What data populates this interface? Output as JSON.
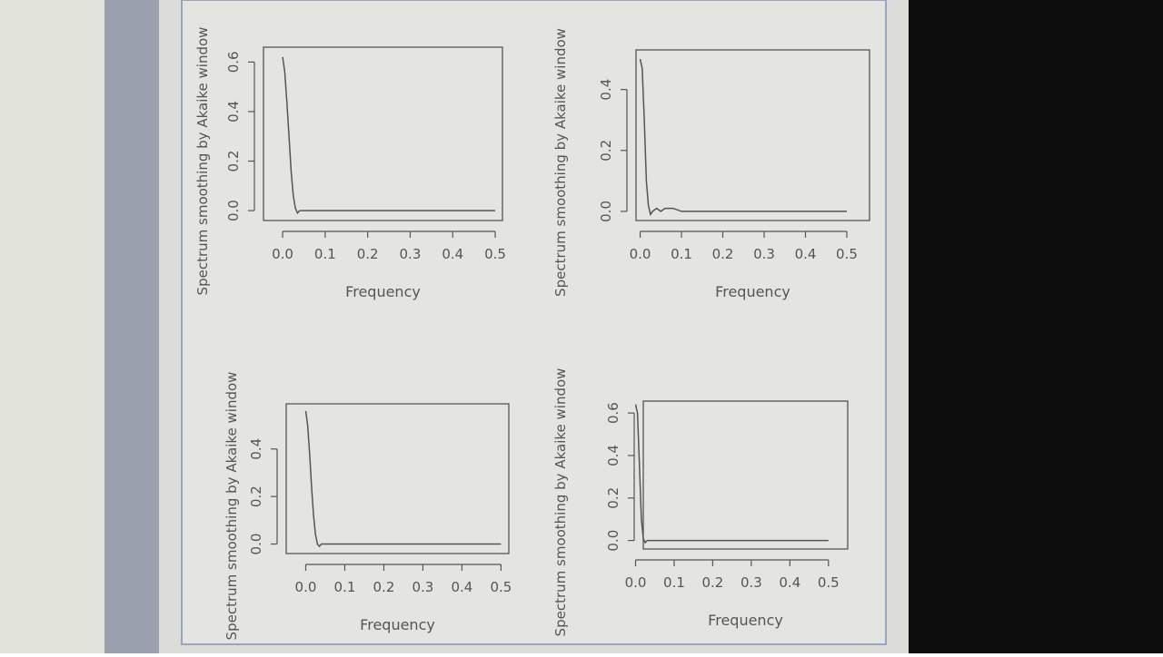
{
  "chart_data": [
    {
      "type": "line",
      "ylabel": "Spectrum smoothing by  Akaike  window",
      "xlabel": "Frequency",
      "x": [
        0,
        0.005,
        0.01,
        0.015,
        0.02,
        0.025,
        0.03,
        0.035,
        0.04,
        0.05,
        0.1,
        0.2,
        0.3,
        0.4,
        0.5
      ],
      "values": [
        0.62,
        0.56,
        0.44,
        0.3,
        0.16,
        0.06,
        0.01,
        -0.01,
        0.0,
        0.0,
        0.0,
        0.0,
        0.0,
        0.0,
        0.0
      ],
      "color": "#555555",
      "xlim": [
        -0.045,
        0.517
      ],
      "ylim": [
        -0.04,
        0.66
      ],
      "xticks": [
        {
          "value": 0,
          "label": "0.0"
        },
        0.1,
        0.2,
        0.3,
        0.4,
        0.5
      ],
      "yticks": [
        {
          "value": 0,
          "label": "0.0"
        },
        0.2,
        0.4,
        0.6
      ]
    },
    {
      "type": "line",
      "ylabel": "Spectrum smoothing by  Akaike  window",
      "xlabel": "Frequency",
      "x": [
        0,
        0.005,
        0.01,
        0.015,
        0.02,
        0.025,
        0.03,
        0.04,
        0.05,
        0.06,
        0.08,
        0.1,
        0.2,
        0.3,
        0.4,
        0.5
      ],
      "values": [
        0.5,
        0.47,
        0.3,
        0.1,
        0.02,
        -0.01,
        0.0,
        0.01,
        0.0,
        0.01,
        0.01,
        0.0,
        0.0,
        0.0,
        0.0,
        0.0
      ],
      "color": "#555555",
      "xlim": [
        -0.01,
        0.555
      ],
      "ylim": [
        -0.03,
        0.53
      ],
      "xticks": [
        {
          "value": 0,
          "label": "0.0"
        },
        0.1,
        0.2,
        0.3,
        0.4,
        0.5
      ],
      "yticks": [
        {
          "value": 0,
          "label": "0.0"
        },
        0.2,
        0.4
      ]
    },
    {
      "type": "line",
      "ylabel": "Spectrum smoothing by  Akaike  window",
      "xlabel": "Frequency",
      "x": [
        0,
        0.005,
        0.01,
        0.015,
        0.02,
        0.025,
        0.03,
        0.035,
        0.04,
        0.05,
        0.1,
        0.2,
        0.3,
        0.4,
        0.5
      ],
      "values": [
        0.56,
        0.5,
        0.38,
        0.24,
        0.12,
        0.04,
        0.0,
        -0.01,
        0.0,
        0.0,
        0.0,
        0.0,
        0.0,
        0.0,
        0.0
      ],
      "color": "#555555",
      "xlim": [
        -0.05,
        0.52
      ],
      "ylim": [
        -0.04,
        0.59
      ],
      "xticks": [
        {
          "value": 0,
          "label": "0.0"
        },
        0.1,
        0.2,
        0.3,
        0.4,
        0.5
      ],
      "yticks": [
        {
          "value": 0,
          "label": "0.0"
        },
        0.2,
        0.4
      ]
    },
    {
      "type": "line",
      "ylabel": "Spectrum smoothing by  Akaike  window",
      "xlabel": "Frequency",
      "x": [
        0,
        0.005,
        0.01,
        0.015,
        0.02,
        0.025,
        0.03,
        0.04,
        0.05,
        0.1,
        0.2,
        0.3,
        0.4,
        0.5
      ],
      "values": [
        0.64,
        0.6,
        0.35,
        0.1,
        0.01,
        -0.01,
        0.0,
        0.0,
        0.0,
        0.0,
        0.0,
        0.0,
        0.0,
        0.0
      ],
      "color": "#555555",
      "xlim": [
        0.02,
        0.55
      ],
      "ylim": [
        -0.04,
        0.656
      ],
      "xticks": [
        {
          "value": 0,
          "label": "0.0"
        },
        0.1,
        0.2,
        0.3,
        0.4,
        0.5
      ],
      "yticks": [
        {
          "value": 0,
          "label": "0.0"
        },
        0.2,
        0.4,
        0.6
      ]
    }
  ]
}
